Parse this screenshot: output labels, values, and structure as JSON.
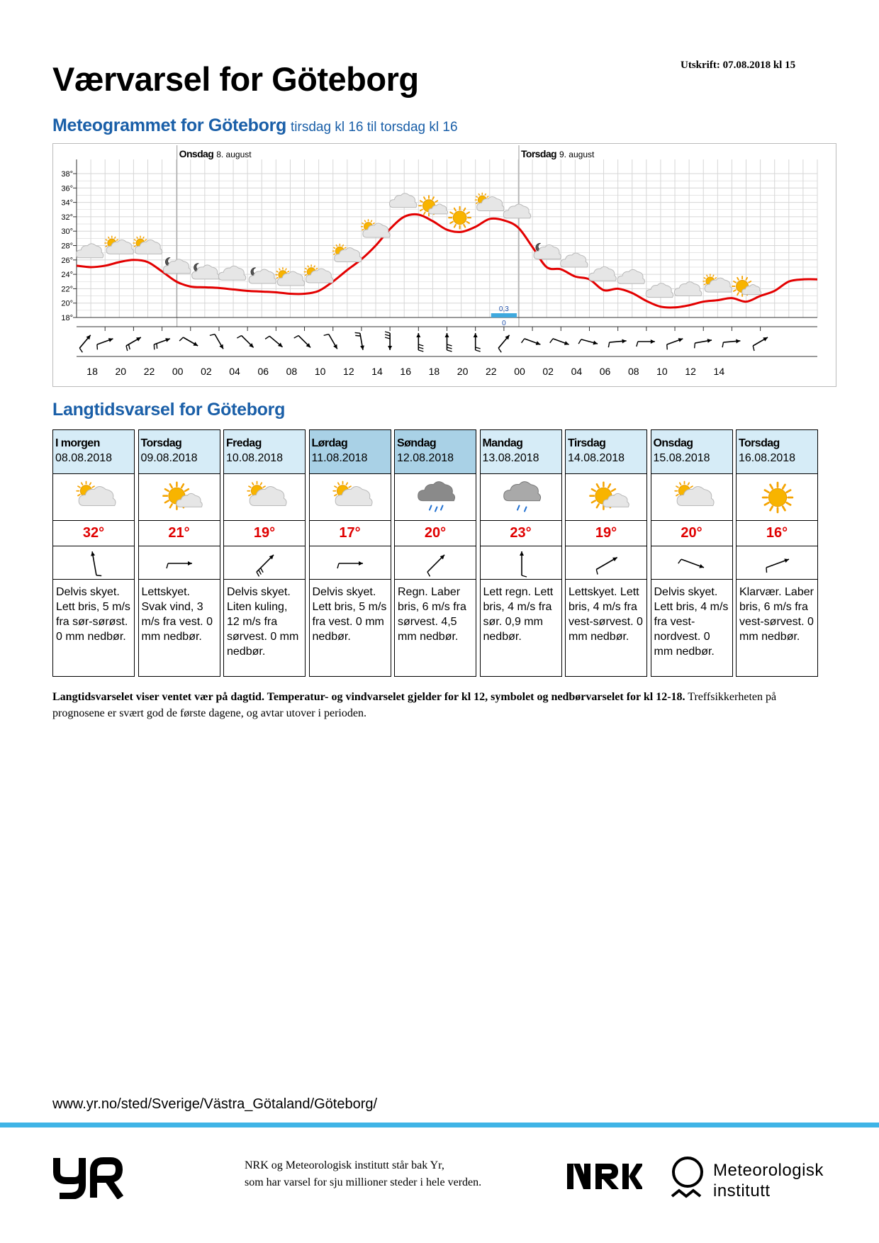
{
  "print_date": "Utskrift: 07.08.2018 kl 15",
  "title": "Værvarsel for Göteborg",
  "meteogram": {
    "title": "Meteogrammet for Göteborg",
    "subtitle": "tirsdag kl 16 til torsdag kl 16",
    "day_labels": [
      {
        "name": "Onsdag",
        "date": "8. august"
      },
      {
        "name": "Torsdag",
        "date": "9. august"
      }
    ],
    "precip_label_top": "0,3",
    "precip_label_bottom": "0",
    "colors": {
      "temperature": "#e30000",
      "precip": "#3fa9de",
      "grid": "#d6d6d6"
    }
  },
  "chart_data": {
    "type": "line",
    "y_ticks": [
      "38°",
      "36°",
      "34°",
      "32°",
      "30°",
      "28°",
      "26°",
      "24°",
      "22°",
      "20°",
      "18°"
    ],
    "ylim": [
      18,
      38
    ],
    "x_ticks": [
      "18",
      "20",
      "22",
      "00",
      "02",
      "04",
      "06",
      "08",
      "10",
      "12",
      "14",
      "16",
      "18",
      "20",
      "22",
      "00",
      "02",
      "04",
      "06",
      "08",
      "10",
      "12",
      "14"
    ],
    "series": [
      {
        "values": [
          25.2,
          25.0,
          25.2,
          25.7,
          26.0,
          25.7,
          24.4,
          23.0,
          22.3,
          22.2,
          22.1,
          21.9,
          21.7,
          21.6,
          21.5,
          21.3,
          21.3,
          21.7,
          23.0,
          24.6,
          26.1,
          28.0,
          30.3,
          32.0,
          32.3,
          31.4,
          30.2,
          29.9,
          30.6,
          31.7,
          31.5,
          30.5,
          27.8,
          25.0,
          24.7,
          23.7,
          23.3,
          21.8,
          22.0,
          21.4,
          20.3,
          19.5,
          19.4,
          19.7,
          20.2,
          20.4,
          20.7,
          20.2,
          21.0,
          21.7,
          23.0,
          23.3,
          23.3
        ]
      }
    ],
    "precipitation": [
      {
        "x": "23-00",
        "value": 0.3
      }
    ]
  },
  "forecast": {
    "title": "Langtidsvarsel for Göteborg",
    "days": [
      {
        "name": "I morgen",
        "date": "08.08.2018",
        "temp": "32°",
        "symbol": "partly-cloudy-icon",
        "wind_dir": 350,
        "desc": "Delvis skyet. Lett bris, 5 m/s fra sør-sørøst. 0 mm nedbør."
      },
      {
        "name": "Torsdag",
        "date": "09.08.2018",
        "temp": "21°",
        "symbol": "fair-icon",
        "wind_dir": 90,
        "desc": "Lettskyet. Svak vind, 3 m/s fra vest. 0 mm nedbør."
      },
      {
        "name": "Fredag",
        "date": "10.08.2018",
        "temp": "19°",
        "symbol": "partly-cloudy-icon",
        "wind_dir": 45,
        "desc": "Delvis skyet. Liten kuling, 12 m/s fra sørvest. 0 mm nedbør."
      },
      {
        "name": "Lørdag",
        "date": "11.08.2018",
        "temp": "17°",
        "symbol": "partly-cloudy-icon",
        "wind_dir": 90,
        "desc": "Delvis skyet. Lett bris, 5 m/s fra vest. 0 mm nedbør."
      },
      {
        "name": "Søndag",
        "date": "12.08.2018",
        "temp": "20°",
        "symbol": "rain-icon",
        "wind_dir": 45,
        "desc": "Regn. Laber bris, 6 m/s fra sørvest. 4,5 mm nedbør."
      },
      {
        "name": "Mandag",
        "date": "13.08.2018",
        "temp": "23°",
        "symbol": "light-rain-icon",
        "wind_dir": 0,
        "desc": "Lett regn. Lett bris, 4 m/s fra sør. 0,9 mm nedbør."
      },
      {
        "name": "Tirsdag",
        "date": "14.08.2018",
        "temp": "19°",
        "symbol": "fair-icon",
        "wind_dir": 60,
        "desc": "Lettskyet. Lett bris, 4 m/s fra vest-sørvest. 0 mm nedbør."
      },
      {
        "name": "Onsdag",
        "date": "15.08.2018",
        "temp": "20°",
        "symbol": "partly-cloudy-icon",
        "wind_dir": 110,
        "desc": "Delvis skyet. Lett bris, 4 m/s fra vest-nordvest. 0 mm nedbør."
      },
      {
        "name": "Torsdag",
        "date": "16.08.2018",
        "temp": "16°",
        "symbol": "clear-sky-icon",
        "wind_dir": 70,
        "desc": "Klarvær. Laber bris, 6 m/s fra vest-sørvest. 0 mm nedbør."
      }
    ]
  },
  "footnote": {
    "bold": "Langtidsvarselet viser ventet vær på dagtid. Temperatur- og vindvarselet gjelder for kl 12, symbolet og nedbørvarselet for kl 12-18.",
    "normal": "Treffsikkerheten på prognosene er svært god de første dagene, og avtar utover i perioden."
  },
  "footer": {
    "url": "www.yr.no/sted/Sverige/Västra_Götaland/Göteborg/",
    "credit_line1": "NRK og Meteorologisk institutt står bak Yr,",
    "credit_line2": "som har varsel for sju millioner steder i hele verden.",
    "met_line1": "Meteorologisk",
    "met_line2": "institutt",
    "accent": "#3fb4e6"
  }
}
